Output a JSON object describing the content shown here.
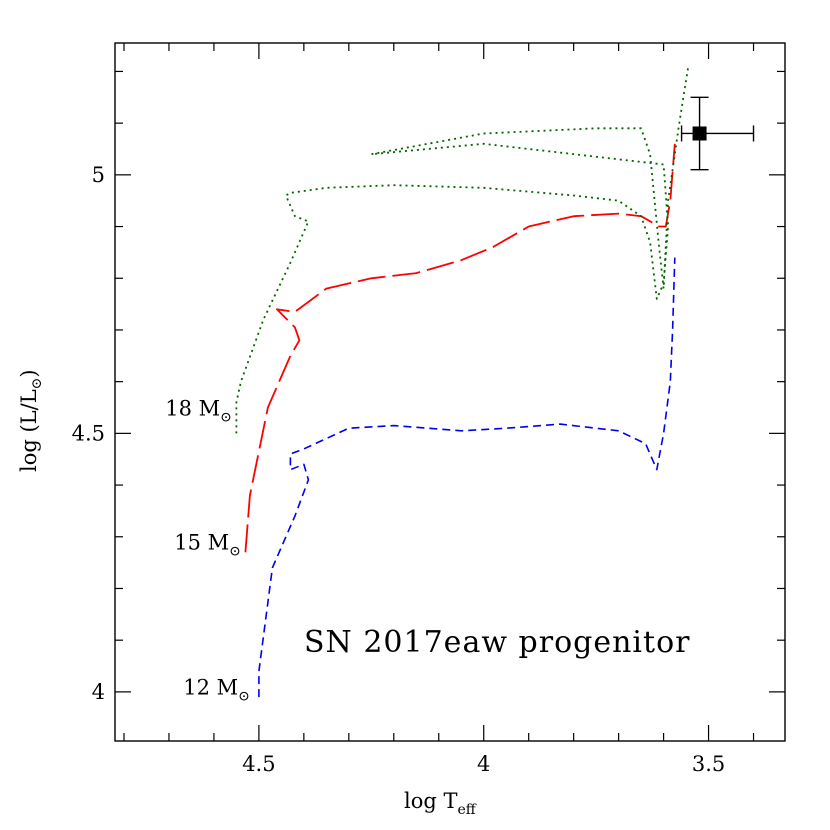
{
  "chart_data": {
    "type": "line",
    "xlabel": "log T",
    "xlabel_sub": "eff",
    "ylabel": "log (L/L",
    "ylabel_symbol": "⊙",
    "ylabel_close": ")",
    "xlim": [
      4.82,
      3.33
    ],
    "ylim": [
      3.905,
      5.255
    ],
    "x_reversed": true,
    "x_ticks": [
      4.5,
      4.0,
      3.5
    ],
    "x_tick_labels": [
      "4.5",
      "4",
      "3.5"
    ],
    "y_ticks": [
      4.0,
      4.5,
      5.0
    ],
    "y_tick_labels": [
      "4",
      "4.5",
      "5"
    ],
    "x_minor_step": 0.1,
    "y_minor_step": 0.1,
    "grid": false,
    "annotation": "SN 2017eaw progenitor",
    "series": [
      {
        "name": "12 M⊙",
        "label_text": "12 M",
        "label_symbol": "⊙",
        "label_at": [
          4.52,
          3.995
        ],
        "color": "#0000ee",
        "dash": "8 5",
        "points": [
          [
            4.5,
            3.99
          ],
          [
            4.5,
            4.04
          ],
          [
            4.47,
            4.24
          ],
          [
            4.42,
            4.34
          ],
          [
            4.39,
            4.41
          ],
          [
            4.4,
            4.44
          ],
          [
            4.43,
            4.43
          ],
          [
            4.43,
            4.46
          ],
          [
            4.4,
            4.47
          ],
          [
            4.3,
            4.51
          ],
          [
            4.2,
            4.515
          ],
          [
            4.05,
            4.505
          ],
          [
            3.95,
            4.51
          ],
          [
            3.83,
            4.518
          ],
          [
            3.7,
            4.505
          ],
          [
            3.64,
            4.48
          ],
          [
            3.615,
            4.43
          ],
          [
            3.6,
            4.5
          ],
          [
            3.585,
            4.6
          ],
          [
            3.58,
            4.7
          ],
          [
            3.575,
            4.84
          ]
        ]
      },
      {
        "name": "15 M⊙",
        "label_text": "15 M",
        "label_symbol": "⊙",
        "label_at": [
          4.54,
          4.275
        ],
        "color": "#ff0000",
        "dash": "28 7",
        "points": [
          [
            4.53,
            4.27
          ],
          [
            4.52,
            4.38
          ],
          [
            4.48,
            4.55
          ],
          [
            4.43,
            4.65
          ],
          [
            4.41,
            4.68
          ],
          [
            4.42,
            4.705
          ],
          [
            4.46,
            4.74
          ],
          [
            4.42,
            4.735
          ],
          [
            4.35,
            4.78
          ],
          [
            4.25,
            4.8
          ],
          [
            4.15,
            4.81
          ],
          [
            4.05,
            4.835
          ],
          [
            3.98,
            4.86
          ],
          [
            3.9,
            4.9
          ],
          [
            3.8,
            4.92
          ],
          [
            3.7,
            4.925
          ],
          [
            3.65,
            4.92
          ],
          [
            3.61,
            4.9
          ],
          [
            3.595,
            4.9
          ],
          [
            3.585,
            4.95
          ],
          [
            3.575,
            5.06
          ]
        ]
      },
      {
        "name": "18 M⊙",
        "label_text": "18 M",
        "label_symbol": "⊙",
        "label_at": [
          4.56,
          4.535
        ],
        "color": "#006400",
        "dash": "2 4",
        "points": [
          [
            4.55,
            4.5
          ],
          [
            4.55,
            4.56
          ],
          [
            4.54,
            4.6
          ],
          [
            4.49,
            4.72
          ],
          [
            4.43,
            4.83
          ],
          [
            4.39,
            4.91
          ],
          [
            4.42,
            4.92
          ],
          [
            4.44,
            4.96
          ],
          [
            4.43,
            4.965
          ],
          [
            4.35,
            4.975
          ],
          [
            4.2,
            4.98
          ],
          [
            4.0,
            4.975
          ],
          [
            3.8,
            4.96
          ],
          [
            3.7,
            4.95
          ],
          [
            3.65,
            4.92
          ],
          [
            3.63,
            4.87
          ],
          [
            3.615,
            4.76
          ],
          [
            3.6,
            4.79
          ],
          [
            3.59,
            4.9
          ],
          [
            3.6,
            5.02
          ],
          [
            4.0,
            5.06
          ],
          [
            4.25,
            5.04
          ],
          [
            4.0,
            5.08
          ],
          [
            3.75,
            5.09
          ],
          [
            3.65,
            5.09
          ],
          [
            3.63,
            5.04
          ],
          [
            3.61,
            4.86
          ],
          [
            3.6,
            4.78
          ],
          [
            3.59,
            4.95
          ],
          [
            3.565,
            5.1
          ],
          [
            3.545,
            5.21
          ]
        ]
      }
    ],
    "data_point": {
      "x": 3.52,
      "y": 5.08,
      "x_err": [
        0.04,
        0.12
      ],
      "y_err": [
        0.07,
        0.07
      ]
    }
  }
}
